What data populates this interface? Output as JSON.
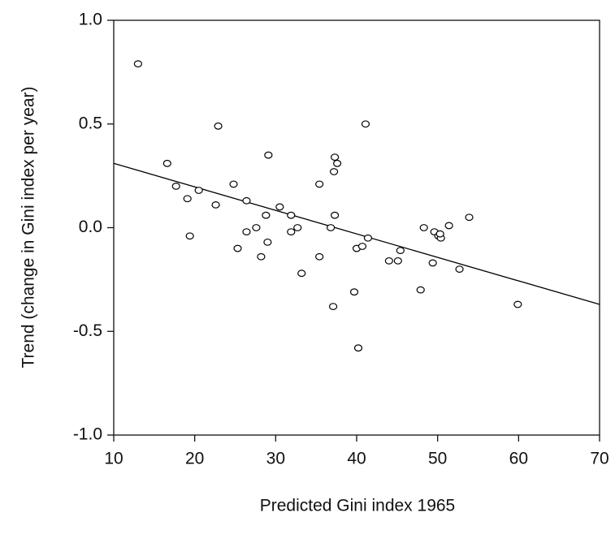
{
  "chart_data": {
    "type": "scatter",
    "x_label": "Predicted Gini index 1965",
    "y_label": "Trend (change in Gini index per year)",
    "xlim": [
      10,
      70
    ],
    "xticks": [
      10,
      20,
      30,
      40,
      50,
      60,
      70
    ],
    "ylim": [
      -1,
      1
    ],
    "yticks": [
      {
        "value": 1,
        "label": "1.0"
      },
      0.5,
      {
        "value": 0,
        "label": "0.0"
      },
      -0.5,
      {
        "value": -1,
        "label": "-1.0"
      }
    ],
    "color": "#000000",
    "x": [
      13.0,
      16.6,
      22.9,
      17.7,
      19.1,
      20.5,
      19.4,
      22.6,
      24.8,
      25.3,
      26.4,
      26.4,
      27.6,
      28.2,
      28.8,
      29.0,
      29.1,
      30.5,
      31.9,
      31.9,
      32.7,
      33.2,
      35.4,
      35.4,
      36.8,
      37.2,
      37.3,
      37.6,
      37.3,
      37.1,
      39.7,
      40.0,
      40.7,
      41.1,
      41.4,
      40.2,
      44.0,
      45.1,
      45.4,
      47.9,
      48.3,
      49.4,
      49.6,
      50.1,
      50.4,
      50.3,
      51.4,
      52.7,
      53.9,
      59.9
    ],
    "values": [
      0.79,
      0.31,
      0.49,
      0.2,
      0.14,
      0.18,
      -0.04,
      0.11,
      0.21,
      -0.1,
      0.13,
      -0.02,
      0.0,
      -0.14,
      0.06,
      -0.07,
      0.35,
      0.1,
      0.06,
      -0.02,
      0.0,
      -0.22,
      0.21,
      -0.14,
      0.0,
      0.27,
      0.34,
      0.31,
      0.06,
      -0.38,
      -0.31,
      -0.1,
      -0.09,
      0.5,
      -0.05,
      -0.58,
      -0.16,
      -0.16,
      -0.11,
      -0.3,
      0.0,
      -0.17,
      -0.02,
      -0.04,
      -0.05,
      -0.03,
      0.01,
      -0.2,
      0.05,
      -0.37
    ],
    "fit_line": {
      "x": [
        10,
        70
      ],
      "values": [
        0.31,
        -0.37
      ]
    }
  }
}
